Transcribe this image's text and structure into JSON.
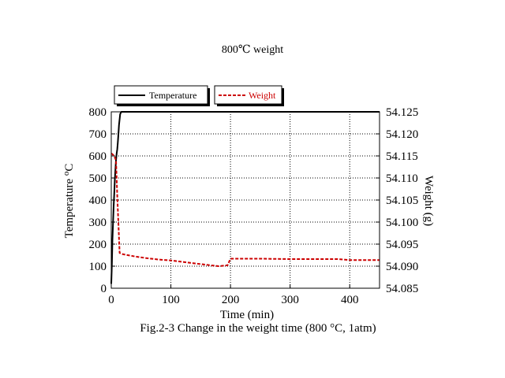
{
  "chart_data": {
    "type": "line",
    "title": "800℃ weight",
    "caption": "Fig.2-3 Change in the weight time (800 °C, 1atm)",
    "xlabel": "Time (min)",
    "ylabel_left": "Temperature (°C)",
    "ylabel_left_parts": {
      "a": "Temperature ",
      "b": "o",
      "c": "C"
    },
    "ylabel_right": "Weight (g)",
    "ylabel_right_parts": {
      "a": "Weight (",
      "b": "g",
      "c": ")"
    },
    "xlim": [
      0,
      450
    ],
    "ylim_left": [
      0,
      800
    ],
    "ylim_right": [
      54.085,
      54.125
    ],
    "x_ticks": [
      "0",
      "100",
      "200",
      "300",
      "400"
    ],
    "y_left_ticks": [
      "0",
      "100",
      "200",
      "300",
      "400",
      "500",
      "600",
      "700",
      "800"
    ],
    "y_right_ticks": [
      "54.085",
      "54.090",
      "54.095",
      "54.100",
      "54.105",
      "54.110",
      "54.115",
      "54.120",
      "54.125"
    ],
    "grid": true,
    "legend_placement": "top",
    "series": [
      {
        "name": "Temperature",
        "axis": "left",
        "color": "#000000",
        "style": "solid",
        "x": [
          0,
          1,
          2,
          3,
          4,
          5,
          6,
          7,
          8,
          9,
          10,
          11,
          12,
          13,
          15,
          17,
          20,
          25,
          100,
          200,
          300,
          400,
          450
        ],
        "y": [
          20,
          110,
          220,
          300,
          370,
          430,
          490,
          540,
          580,
          610,
          630,
          660,
          700,
          740,
          790,
          800,
          800,
          800,
          800,
          800,
          800,
          800,
          800
        ]
      },
      {
        "name": "Weight",
        "axis": "right",
        "color": "#cc0000",
        "style": "dashed",
        "x": [
          0,
          1,
          5,
          8,
          10,
          12,
          14,
          20,
          40,
          60,
          80,
          100,
          130,
          160,
          180,
          195,
          196,
          200,
          250,
          300,
          350,
          380,
          400,
          450
        ],
        "y": [
          54.1155,
          54.1155,
          54.115,
          54.114,
          54.106,
          54.0995,
          54.093,
          54.0927,
          54.0922,
          54.0918,
          54.0915,
          54.0913,
          54.0908,
          54.0903,
          54.09,
          54.0902,
          54.0905,
          54.0917,
          54.0917,
          54.0916,
          54.0916,
          54.0916,
          54.0914,
          54.0914
        ]
      }
    ]
  }
}
